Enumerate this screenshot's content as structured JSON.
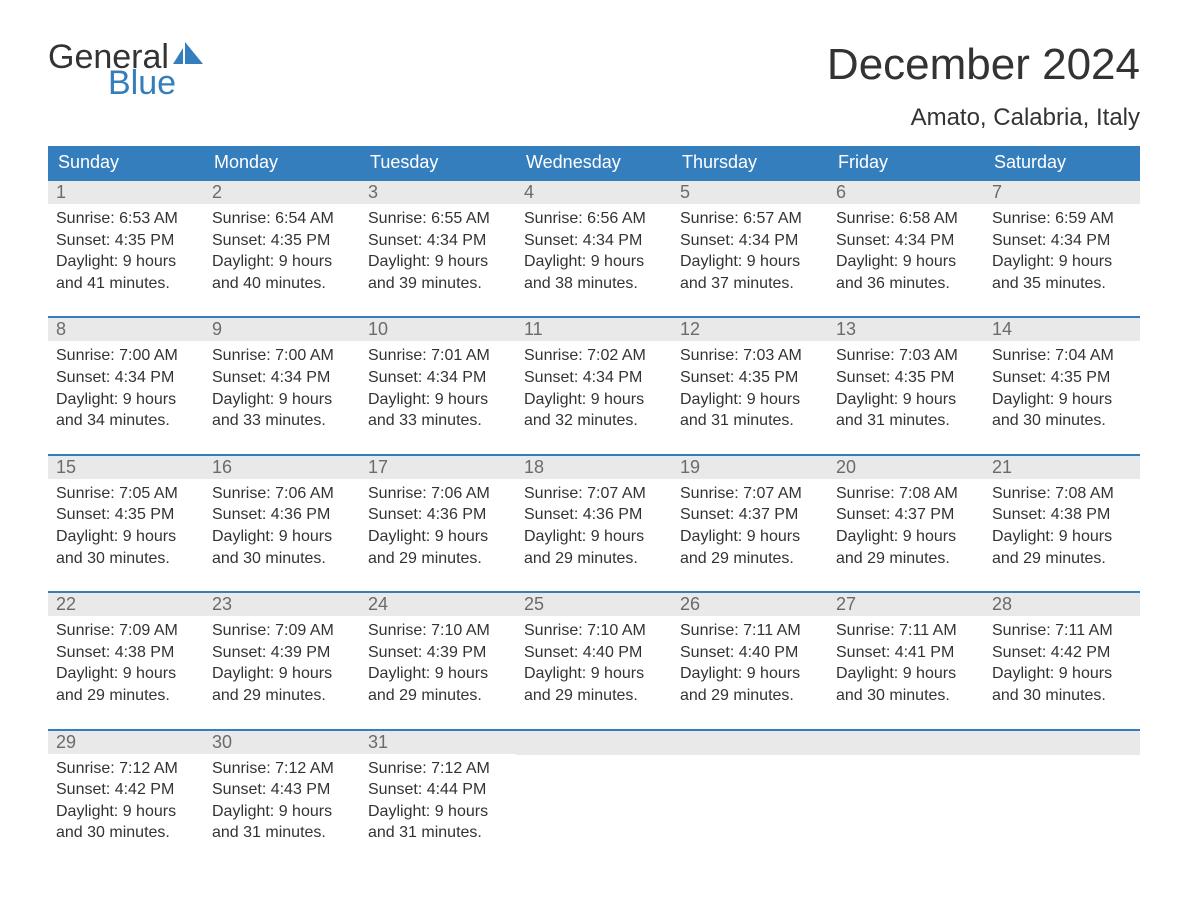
{
  "colors": {
    "brand_blue": "#357ebd",
    "header_row_bg": "#357ebd",
    "header_row_text": "#ffffff",
    "daynum_bg": "#e9e9e9",
    "daynum_text": "#6b6b6b",
    "body_text": "#333333",
    "background": "#ffffff",
    "week_border": "#357ebd"
  },
  "logo": {
    "word1": "General",
    "word2": "Blue"
  },
  "title": "December 2024",
  "location": "Amato, Calabria, Italy",
  "day_headers": [
    "Sunday",
    "Monday",
    "Tuesday",
    "Wednesday",
    "Thursday",
    "Friday",
    "Saturday"
  ],
  "weeks": [
    [
      {
        "n": "1",
        "sunrise": "Sunrise: 6:53 AM",
        "sunset": "Sunset: 4:35 PM",
        "d1": "Daylight: 9 hours",
        "d2": "and 41 minutes."
      },
      {
        "n": "2",
        "sunrise": "Sunrise: 6:54 AM",
        "sunset": "Sunset: 4:35 PM",
        "d1": "Daylight: 9 hours",
        "d2": "and 40 minutes."
      },
      {
        "n": "3",
        "sunrise": "Sunrise: 6:55 AM",
        "sunset": "Sunset: 4:34 PM",
        "d1": "Daylight: 9 hours",
        "d2": "and 39 minutes."
      },
      {
        "n": "4",
        "sunrise": "Sunrise: 6:56 AM",
        "sunset": "Sunset: 4:34 PM",
        "d1": "Daylight: 9 hours",
        "d2": "and 38 minutes."
      },
      {
        "n": "5",
        "sunrise": "Sunrise: 6:57 AM",
        "sunset": "Sunset: 4:34 PM",
        "d1": "Daylight: 9 hours",
        "d2": "and 37 minutes."
      },
      {
        "n": "6",
        "sunrise": "Sunrise: 6:58 AM",
        "sunset": "Sunset: 4:34 PM",
        "d1": "Daylight: 9 hours",
        "d2": "and 36 minutes."
      },
      {
        "n": "7",
        "sunrise": "Sunrise: 6:59 AM",
        "sunset": "Sunset: 4:34 PM",
        "d1": "Daylight: 9 hours",
        "d2": "and 35 minutes."
      }
    ],
    [
      {
        "n": "8",
        "sunrise": "Sunrise: 7:00 AM",
        "sunset": "Sunset: 4:34 PM",
        "d1": "Daylight: 9 hours",
        "d2": "and 34 minutes."
      },
      {
        "n": "9",
        "sunrise": "Sunrise: 7:00 AM",
        "sunset": "Sunset: 4:34 PM",
        "d1": "Daylight: 9 hours",
        "d2": "and 33 minutes."
      },
      {
        "n": "10",
        "sunrise": "Sunrise: 7:01 AM",
        "sunset": "Sunset: 4:34 PM",
        "d1": "Daylight: 9 hours",
        "d2": "and 33 minutes."
      },
      {
        "n": "11",
        "sunrise": "Sunrise: 7:02 AM",
        "sunset": "Sunset: 4:34 PM",
        "d1": "Daylight: 9 hours",
        "d2": "and 32 minutes."
      },
      {
        "n": "12",
        "sunrise": "Sunrise: 7:03 AM",
        "sunset": "Sunset: 4:35 PM",
        "d1": "Daylight: 9 hours",
        "d2": "and 31 minutes."
      },
      {
        "n": "13",
        "sunrise": "Sunrise: 7:03 AM",
        "sunset": "Sunset: 4:35 PM",
        "d1": "Daylight: 9 hours",
        "d2": "and 31 minutes."
      },
      {
        "n": "14",
        "sunrise": "Sunrise: 7:04 AM",
        "sunset": "Sunset: 4:35 PM",
        "d1": "Daylight: 9 hours",
        "d2": "and 30 minutes."
      }
    ],
    [
      {
        "n": "15",
        "sunrise": "Sunrise: 7:05 AM",
        "sunset": "Sunset: 4:35 PM",
        "d1": "Daylight: 9 hours",
        "d2": "and 30 minutes."
      },
      {
        "n": "16",
        "sunrise": "Sunrise: 7:06 AM",
        "sunset": "Sunset: 4:36 PM",
        "d1": "Daylight: 9 hours",
        "d2": "and 30 minutes."
      },
      {
        "n": "17",
        "sunrise": "Sunrise: 7:06 AM",
        "sunset": "Sunset: 4:36 PM",
        "d1": "Daylight: 9 hours",
        "d2": "and 29 minutes."
      },
      {
        "n": "18",
        "sunrise": "Sunrise: 7:07 AM",
        "sunset": "Sunset: 4:36 PM",
        "d1": "Daylight: 9 hours",
        "d2": "and 29 minutes."
      },
      {
        "n": "19",
        "sunrise": "Sunrise: 7:07 AM",
        "sunset": "Sunset: 4:37 PM",
        "d1": "Daylight: 9 hours",
        "d2": "and 29 minutes."
      },
      {
        "n": "20",
        "sunrise": "Sunrise: 7:08 AM",
        "sunset": "Sunset: 4:37 PM",
        "d1": "Daylight: 9 hours",
        "d2": "and 29 minutes."
      },
      {
        "n": "21",
        "sunrise": "Sunrise: 7:08 AM",
        "sunset": "Sunset: 4:38 PM",
        "d1": "Daylight: 9 hours",
        "d2": "and 29 minutes."
      }
    ],
    [
      {
        "n": "22",
        "sunrise": "Sunrise: 7:09 AM",
        "sunset": "Sunset: 4:38 PM",
        "d1": "Daylight: 9 hours",
        "d2": "and 29 minutes."
      },
      {
        "n": "23",
        "sunrise": "Sunrise: 7:09 AM",
        "sunset": "Sunset: 4:39 PM",
        "d1": "Daylight: 9 hours",
        "d2": "and 29 minutes."
      },
      {
        "n": "24",
        "sunrise": "Sunrise: 7:10 AM",
        "sunset": "Sunset: 4:39 PM",
        "d1": "Daylight: 9 hours",
        "d2": "and 29 minutes."
      },
      {
        "n": "25",
        "sunrise": "Sunrise: 7:10 AM",
        "sunset": "Sunset: 4:40 PM",
        "d1": "Daylight: 9 hours",
        "d2": "and 29 minutes."
      },
      {
        "n": "26",
        "sunrise": "Sunrise: 7:11 AM",
        "sunset": "Sunset: 4:40 PM",
        "d1": "Daylight: 9 hours",
        "d2": "and 29 minutes."
      },
      {
        "n": "27",
        "sunrise": "Sunrise: 7:11 AM",
        "sunset": "Sunset: 4:41 PM",
        "d1": "Daylight: 9 hours",
        "d2": "and 30 minutes."
      },
      {
        "n": "28",
        "sunrise": "Sunrise: 7:11 AM",
        "sunset": "Sunset: 4:42 PM",
        "d1": "Daylight: 9 hours",
        "d2": "and 30 minutes."
      }
    ],
    [
      {
        "n": "29",
        "sunrise": "Sunrise: 7:12 AM",
        "sunset": "Sunset: 4:42 PM",
        "d1": "Daylight: 9 hours",
        "d2": "and 30 minutes."
      },
      {
        "n": "30",
        "sunrise": "Sunrise: 7:12 AM",
        "sunset": "Sunset: 4:43 PM",
        "d1": "Daylight: 9 hours",
        "d2": "and 31 minutes."
      },
      {
        "n": "31",
        "sunrise": "Sunrise: 7:12 AM",
        "sunset": "Sunset: 4:44 PM",
        "d1": "Daylight: 9 hours",
        "d2": "and 31 minutes."
      },
      null,
      null,
      null,
      null
    ]
  ]
}
